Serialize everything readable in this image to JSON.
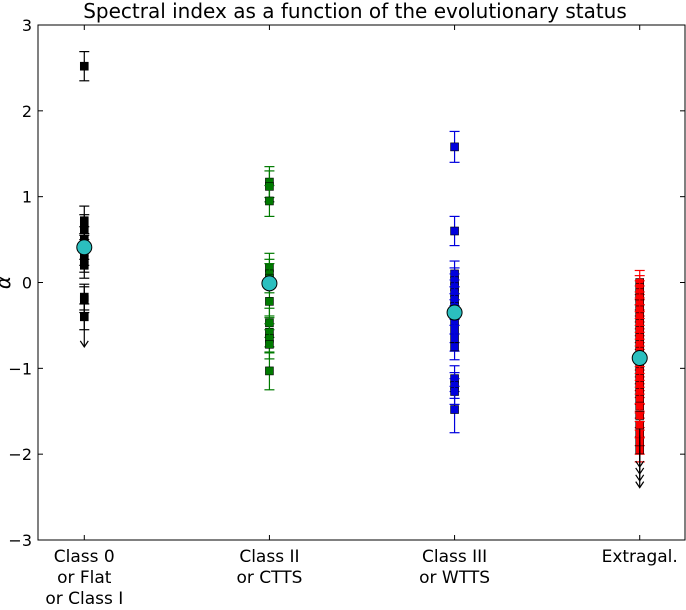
{
  "chart_data": {
    "type": "scatter",
    "title": "Spectral index as a function of the evolutionary status",
    "ylabel": "α",
    "xlabel": "",
    "ylim": [
      -3,
      3
    ],
    "yticks": [
      -3,
      -2,
      -1,
      0,
      1,
      2,
      3
    ],
    "grid": false,
    "legend": "none",
    "categories": [
      {
        "lines": [
          "Class 0",
          "or Flat",
          "or Class I"
        ]
      },
      {
        "lines": [
          "Class II",
          "or CTTS"
        ]
      },
      {
        "lines": [
          "Class III",
          "or WTTS"
        ]
      },
      {
        "lines": [
          "Extragal."
        ]
      }
    ],
    "mean_marker_color": "#2bbfbf",
    "series": [
      {
        "color": "#000000",
        "points": [
          {
            "y": 2.52,
            "err": 0.17
          },
          {
            "y": 0.72,
            "err": 0.17
          },
          {
            "y": 0.62,
            "err": 0.17
          },
          {
            "y": 0.5,
            "err": 0.15
          },
          {
            "y": 0.42,
            "err": 0.15
          },
          {
            "y": 0.35,
            "err": 0.15
          },
          {
            "y": 0.27,
            "err": 0.15
          },
          {
            "y": 0.2,
            "err": 0.15
          },
          {
            "y": -0.17,
            "err": 0.15
          },
          {
            "y": -0.2,
            "err": 0.15
          },
          {
            "y": -0.4,
            "err": 0.15
          }
        ],
        "upper_limits": [
          -0.3
        ],
        "mean": 0.41
      },
      {
        "color": "#007a00",
        "points": [
          {
            "y": 1.17,
            "err": 0.18
          },
          {
            "y": 1.12,
            "err": 0.18
          },
          {
            "y": 0.95,
            "err": 0.18
          },
          {
            "y": 0.17,
            "err": 0.17
          },
          {
            "y": 0.1,
            "err": 0.17
          },
          {
            "y": 0.05,
            "err": 0.17
          },
          {
            "y": -0.22,
            "err": 0.17
          },
          {
            "y": -0.47,
            "err": 0.17
          },
          {
            "y": -0.58,
            "err": 0.17
          },
          {
            "y": -0.65,
            "err": 0.17
          },
          {
            "y": -0.72,
            "err": 0.17
          },
          {
            "y": -1.03,
            "err": 0.22
          }
        ],
        "upper_limits": [],
        "mean": -0.01
      },
      {
        "color": "#0000dd",
        "points": [
          {
            "y": 1.58,
            "err": 0.18
          },
          {
            "y": 0.6,
            "err": 0.17
          },
          {
            "y": 0.1,
            "err": 0.15
          },
          {
            "y": 0.02,
            "err": 0.15
          },
          {
            "y": -0.05,
            "err": 0.15
          },
          {
            "y": -0.12,
            "err": 0.15
          },
          {
            "y": -0.2,
            "err": 0.15
          },
          {
            "y": -0.28,
            "err": 0.15
          },
          {
            "y": -0.35,
            "err": 0.15
          },
          {
            "y": -0.45,
            "err": 0.15
          },
          {
            "y": -0.55,
            "err": 0.15
          },
          {
            "y": -0.65,
            "err": 0.15
          },
          {
            "y": -0.75,
            "err": 0.15
          },
          {
            "y": -1.12,
            "err": 0.15
          },
          {
            "y": -1.2,
            "err": 0.15
          },
          {
            "y": -1.27,
            "err": 0.15
          },
          {
            "y": -1.48,
            "err": 0.27
          }
        ],
        "upper_limits": [],
        "mean": -0.35
      },
      {
        "color": "#ff0000",
        "points": [
          {
            "y": 0.0,
            "err": 0.14
          },
          {
            "y": -0.06,
            "err": 0.14
          },
          {
            "y": -0.12,
            "err": 0.14
          },
          {
            "y": -0.18,
            "err": 0.14
          },
          {
            "y": -0.25,
            "err": 0.14
          },
          {
            "y": -0.32,
            "err": 0.14
          },
          {
            "y": -0.4,
            "err": 0.14
          },
          {
            "y": -0.48,
            "err": 0.14
          },
          {
            "y": -0.56,
            "err": 0.14
          },
          {
            "y": -0.64,
            "err": 0.14
          },
          {
            "y": -0.72,
            "err": 0.14
          },
          {
            "y": -0.8,
            "err": 0.14
          },
          {
            "y": -0.88,
            "err": 0.14
          },
          {
            "y": -0.96,
            "err": 0.14
          },
          {
            "y": -1.04,
            "err": 0.14
          },
          {
            "y": -1.12,
            "err": 0.14
          },
          {
            "y": -1.2,
            "err": 0.14
          },
          {
            "y": -1.28,
            "err": 0.14
          },
          {
            "y": -1.36,
            "err": 0.14
          },
          {
            "y": -1.44,
            "err": 0.14
          },
          {
            "y": -1.55,
            "err": 0.14
          },
          {
            "y": -1.66,
            "err": 0.14
          },
          {
            "y": -1.76,
            "err": 0.14
          },
          {
            "y": -1.86,
            "err": 0.14
          },
          {
            "y": -1.95,
            "err": 0.14
          }
        ],
        "upper_limits": [
          -1.7,
          -1.78,
          -1.86,
          -1.94
        ],
        "mean": -0.88
      }
    ]
  }
}
